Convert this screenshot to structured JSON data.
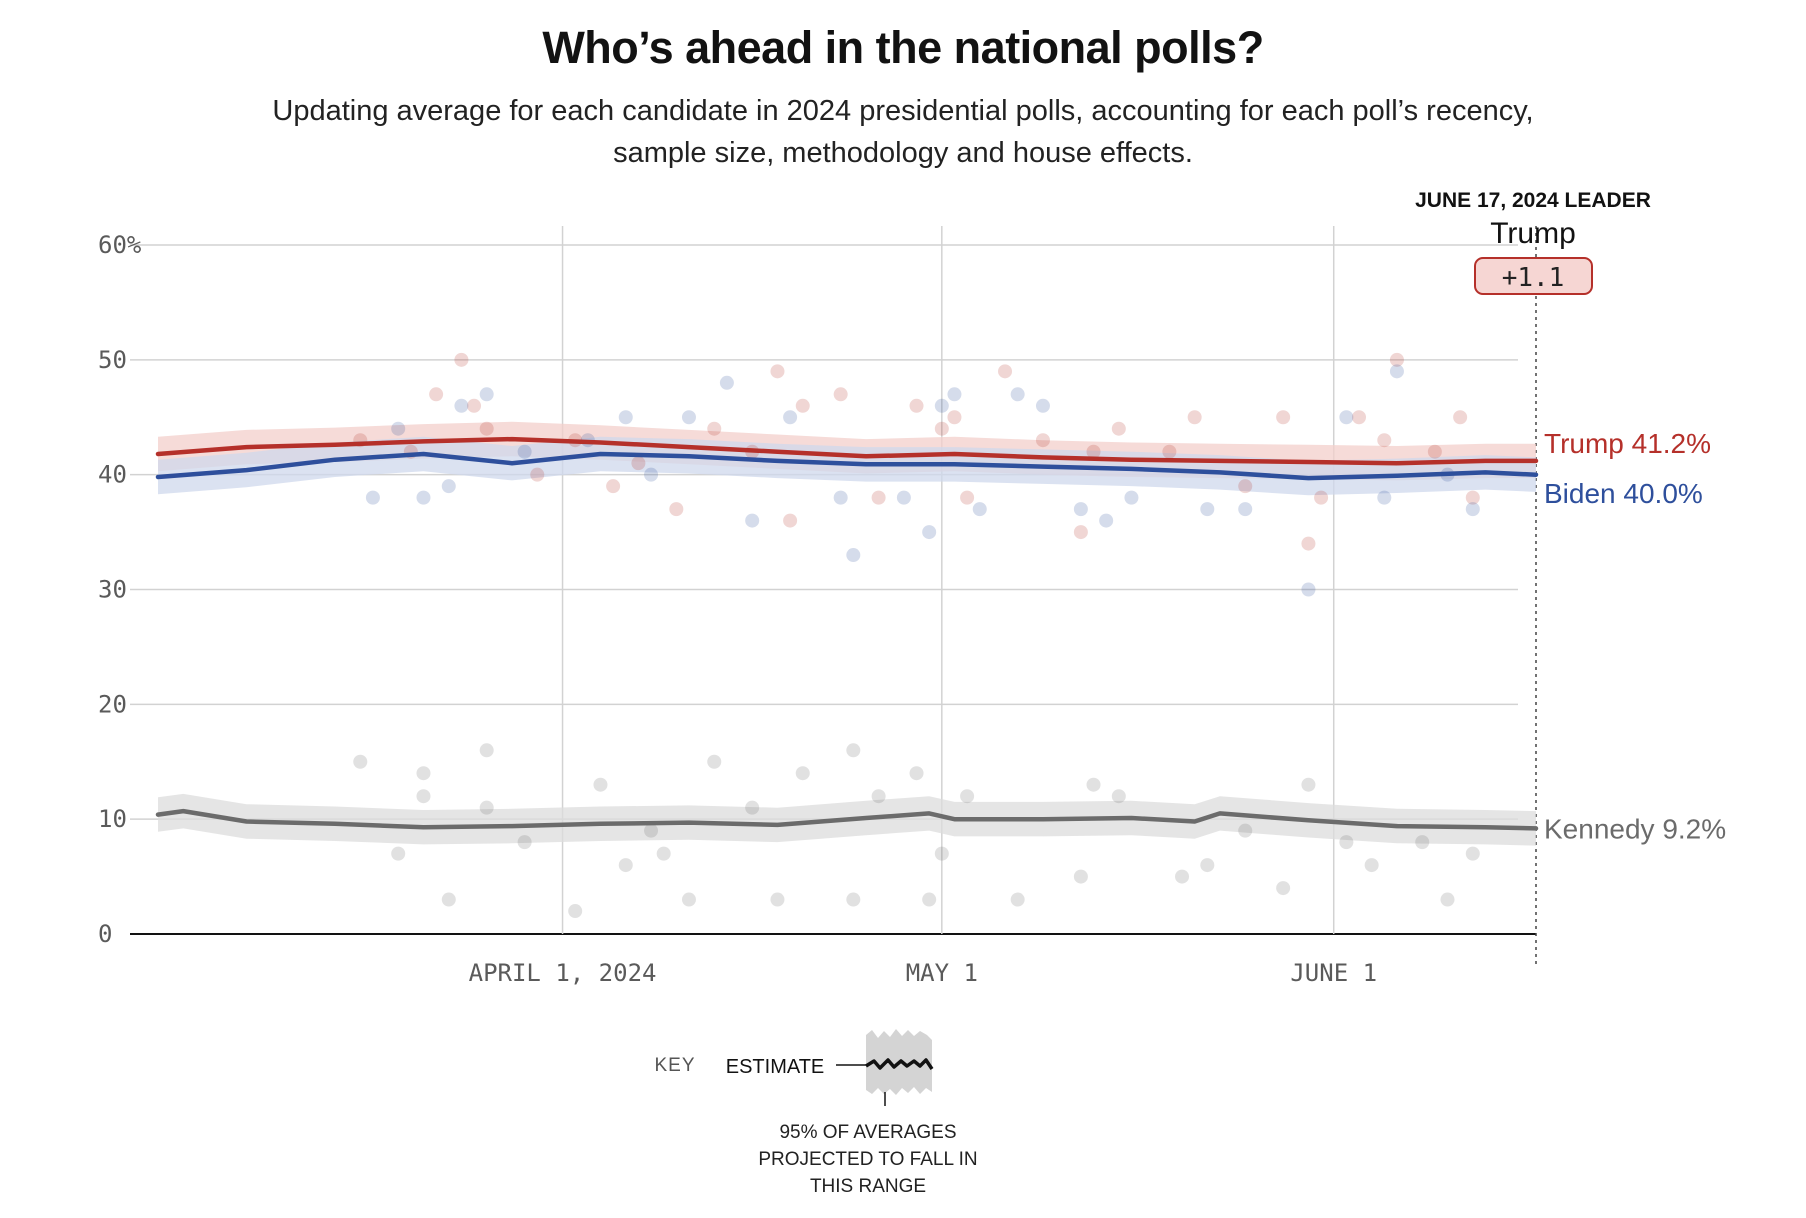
{
  "title": "Who’s ahead in the national polls?",
  "subtitle": "Updating average for each candidate in 2024 presidential polls, accounting for each poll’s recency, sample size, methodology and house effects.",
  "leader": {
    "heading": "JUNE 17, 2024 LEADER",
    "name": "Trump",
    "margin": "+1.1"
  },
  "key": {
    "label": "KEY",
    "estimate": "ESTIMATE",
    "note_lines": [
      "95% OF AVERAGES",
      "PROJECTED TO FALL IN",
      "THIS RANGE"
    ]
  },
  "colors": {
    "trump": "#b5302a",
    "biden": "#2e4f9c",
    "kennedy": "#6b6b6b",
    "trump_band": "#f3cfcb",
    "biden_band": "#cfd8ec",
    "kennedy_band": "#dcdcdc",
    "leader_fill": "#f6d6d3",
    "leader_stroke": "#b5302a"
  },
  "chart_data": {
    "type": "line",
    "title": "Who’s ahead in the national polls?",
    "ylim": [
      0,
      60
    ],
    "y_ticks": [
      0,
      10,
      20,
      30,
      40,
      50,
      60
    ],
    "y_tick_labels": [
      "0",
      "10",
      "20",
      "30",
      "40",
      "50",
      "60%"
    ],
    "x_range": [
      "2024-02-29",
      "2024-06-17"
    ],
    "x_ticks": [
      {
        "date": "2024-04-01",
        "label": "APRIL 1, 2024"
      },
      {
        "date": "2024-05-01",
        "label": "MAY 1"
      },
      {
        "date": "2024-06-01",
        "label": "JUNE 1"
      }
    ],
    "grid": true,
    "legend": "end-of-line labels",
    "series": [
      {
        "name": "Trump",
        "end_label": "Trump 41.2%",
        "color_key": "trump",
        "band_key": "trump_band",
        "band_halfwidth": 1.5,
        "dates": [
          "2024-02-29",
          "2024-03-07",
          "2024-03-14",
          "2024-03-21",
          "2024-03-28",
          "2024-04-04",
          "2024-04-11",
          "2024-04-18",
          "2024-04-25",
          "2024-05-02",
          "2024-05-09",
          "2024-05-16",
          "2024-05-23",
          "2024-05-30",
          "2024-06-06",
          "2024-06-13",
          "2024-06-17"
        ],
        "values": [
          41.8,
          42.4,
          42.6,
          42.9,
          43.1,
          42.8,
          42.4,
          42.0,
          41.6,
          41.8,
          41.5,
          41.3,
          41.2,
          41.1,
          41.0,
          41.2,
          41.2
        ],
        "polls": [
          {
            "date": "2024-03-16",
            "v": 43
          },
          {
            "date": "2024-03-20",
            "v": 42
          },
          {
            "date": "2024-03-22",
            "v": 47
          },
          {
            "date": "2024-03-24",
            "v": 50
          },
          {
            "date": "2024-03-25",
            "v": 46
          },
          {
            "date": "2024-03-26",
            "v": 44
          },
          {
            "date": "2024-03-30",
            "v": 40
          },
          {
            "date": "2024-04-02",
            "v": 43
          },
          {
            "date": "2024-04-05",
            "v": 39
          },
          {
            "date": "2024-04-07",
            "v": 41
          },
          {
            "date": "2024-04-10",
            "v": 37
          },
          {
            "date": "2024-04-13",
            "v": 44
          },
          {
            "date": "2024-04-16",
            "v": 42
          },
          {
            "date": "2024-04-18",
            "v": 49
          },
          {
            "date": "2024-04-19",
            "v": 36
          },
          {
            "date": "2024-04-20",
            "v": 46
          },
          {
            "date": "2024-04-23",
            "v": 47
          },
          {
            "date": "2024-04-26",
            "v": 38
          },
          {
            "date": "2024-04-29",
            "v": 46
          },
          {
            "date": "2024-05-01",
            "v": 44
          },
          {
            "date": "2024-05-02",
            "v": 45
          },
          {
            "date": "2024-05-03",
            "v": 38
          },
          {
            "date": "2024-05-06",
            "v": 49
          },
          {
            "date": "2024-05-09",
            "v": 43
          },
          {
            "date": "2024-05-12",
            "v": 35
          },
          {
            "date": "2024-05-13",
            "v": 42
          },
          {
            "date": "2024-05-15",
            "v": 44
          },
          {
            "date": "2024-05-19",
            "v": 42
          },
          {
            "date": "2024-05-21",
            "v": 45
          },
          {
            "date": "2024-05-25",
            "v": 39
          },
          {
            "date": "2024-05-28",
            "v": 45
          },
          {
            "date": "2024-05-30",
            "v": 34
          },
          {
            "date": "2024-05-31",
            "v": 38
          },
          {
            "date": "2024-06-03",
            "v": 45
          },
          {
            "date": "2024-06-05",
            "v": 43
          },
          {
            "date": "2024-06-06",
            "v": 50
          },
          {
            "date": "2024-06-09",
            "v": 42
          },
          {
            "date": "2024-06-11",
            "v": 45
          },
          {
            "date": "2024-06-12",
            "v": 38
          }
        ]
      },
      {
        "name": "Biden",
        "end_label": "Biden 40.0%",
        "color_key": "biden",
        "band_key": "biden_band",
        "band_halfwidth": 1.5,
        "dates": [
          "2024-02-29",
          "2024-03-07",
          "2024-03-14",
          "2024-03-21",
          "2024-03-28",
          "2024-04-04",
          "2024-04-11",
          "2024-04-18",
          "2024-04-25",
          "2024-05-02",
          "2024-05-09",
          "2024-05-16",
          "2024-05-23",
          "2024-05-30",
          "2024-06-06",
          "2024-06-13",
          "2024-06-17"
        ],
        "values": [
          39.8,
          40.4,
          41.3,
          41.8,
          41.0,
          41.8,
          41.6,
          41.2,
          40.9,
          40.9,
          40.7,
          40.5,
          40.2,
          39.7,
          39.9,
          40.2,
          40.0
        ],
        "polls": [
          {
            "date": "2024-03-17",
            "v": 38
          },
          {
            "date": "2024-03-19",
            "v": 44
          },
          {
            "date": "2024-03-21",
            "v": 38
          },
          {
            "date": "2024-03-23",
            "v": 39
          },
          {
            "date": "2024-03-24",
            "v": 46
          },
          {
            "date": "2024-03-26",
            "v": 47
          },
          {
            "date": "2024-03-29",
            "v": 42
          },
          {
            "date": "2024-04-03",
            "v": 43
          },
          {
            "date": "2024-04-06",
            "v": 45
          },
          {
            "date": "2024-04-08",
            "v": 40
          },
          {
            "date": "2024-04-11",
            "v": 45
          },
          {
            "date": "2024-04-14",
            "v": 48
          },
          {
            "date": "2024-04-16",
            "v": 36
          },
          {
            "date": "2024-04-19",
            "v": 45
          },
          {
            "date": "2024-04-23",
            "v": 38
          },
          {
            "date": "2024-04-24",
            "v": 33
          },
          {
            "date": "2024-04-28",
            "v": 38
          },
          {
            "date": "2024-04-30",
            "v": 35
          },
          {
            "date": "2024-05-01",
            "v": 46
          },
          {
            "date": "2024-05-02",
            "v": 47
          },
          {
            "date": "2024-05-04",
            "v": 37
          },
          {
            "date": "2024-05-07",
            "v": 47
          },
          {
            "date": "2024-05-09",
            "v": 46
          },
          {
            "date": "2024-05-12",
            "v": 37
          },
          {
            "date": "2024-05-14",
            "v": 36
          },
          {
            "date": "2024-05-16",
            "v": 38
          },
          {
            "date": "2024-05-22",
            "v": 37
          },
          {
            "date": "2024-05-25",
            "v": 37
          },
          {
            "date": "2024-05-30",
            "v": 30
          },
          {
            "date": "2024-06-02",
            "v": 45
          },
          {
            "date": "2024-06-05",
            "v": 38
          },
          {
            "date": "2024-06-06",
            "v": 49
          },
          {
            "date": "2024-06-10",
            "v": 40
          },
          {
            "date": "2024-06-12",
            "v": 37
          }
        ]
      },
      {
        "name": "Kennedy",
        "end_label": "Kennedy 9.2%",
        "color_key": "kennedy",
        "band_key": "kennedy_band",
        "band_halfwidth": 1.5,
        "dates": [
          "2024-02-29",
          "2024-03-02",
          "2024-03-07",
          "2024-03-14",
          "2024-03-21",
          "2024-03-28",
          "2024-04-04",
          "2024-04-11",
          "2024-04-18",
          "2024-04-25",
          "2024-04-30",
          "2024-05-02",
          "2024-05-09",
          "2024-05-16",
          "2024-05-21",
          "2024-05-23",
          "2024-05-30",
          "2024-06-06",
          "2024-06-13",
          "2024-06-17"
        ],
        "values": [
          10.4,
          10.7,
          9.8,
          9.6,
          9.3,
          9.4,
          9.6,
          9.7,
          9.5,
          10.1,
          10.5,
          10.0,
          10.0,
          10.1,
          9.8,
          10.5,
          9.9,
          9.4,
          9.3,
          9.2
        ],
        "polls": [
          {
            "date": "2024-03-16",
            "v": 15
          },
          {
            "date": "2024-03-19",
            "v": 7
          },
          {
            "date": "2024-03-21",
            "v": 14
          },
          {
            "date": "2024-03-21",
            "v": 12
          },
          {
            "date": "2024-03-23",
            "v": 3
          },
          {
            "date": "2024-03-26",
            "v": 16
          },
          {
            "date": "2024-03-26",
            "v": 11
          },
          {
            "date": "2024-03-29",
            "v": 8
          },
          {
            "date": "2024-04-02",
            "v": 2
          },
          {
            "date": "2024-04-04",
            "v": 13
          },
          {
            "date": "2024-04-06",
            "v": 6
          },
          {
            "date": "2024-04-08",
            "v": 9
          },
          {
            "date": "2024-04-09",
            "v": 7
          },
          {
            "date": "2024-04-11",
            "v": 3
          },
          {
            "date": "2024-04-13",
            "v": 15
          },
          {
            "date": "2024-04-16",
            "v": 11
          },
          {
            "date": "2024-04-18",
            "v": 3
          },
          {
            "date": "2024-04-20",
            "v": 14
          },
          {
            "date": "2024-04-24",
            "v": 16
          },
          {
            "date": "2024-04-24",
            "v": 3
          },
          {
            "date": "2024-04-26",
            "v": 12
          },
          {
            "date": "2024-04-29",
            "v": 14
          },
          {
            "date": "2024-04-30",
            "v": 3
          },
          {
            "date": "2024-05-01",
            "v": 7
          },
          {
            "date": "2024-05-03",
            "v": 12
          },
          {
            "date": "2024-05-07",
            "v": 3
          },
          {
            "date": "2024-05-12",
            "v": 5
          },
          {
            "date": "2024-05-13",
            "v": 13
          },
          {
            "date": "2024-05-15",
            "v": 12
          },
          {
            "date": "2024-05-20",
            "v": 5
          },
          {
            "date": "2024-05-22",
            "v": 6
          },
          {
            "date": "2024-05-25",
            "v": 9
          },
          {
            "date": "2024-05-28",
            "v": 4
          },
          {
            "date": "2024-05-30",
            "v": 13
          },
          {
            "date": "2024-06-02",
            "v": 8
          },
          {
            "date": "2024-06-04",
            "v": 6
          },
          {
            "date": "2024-06-08",
            "v": 8
          },
          {
            "date": "2024-06-10",
            "v": 3
          },
          {
            "date": "2024-06-12",
            "v": 7
          }
        ]
      }
    ]
  }
}
